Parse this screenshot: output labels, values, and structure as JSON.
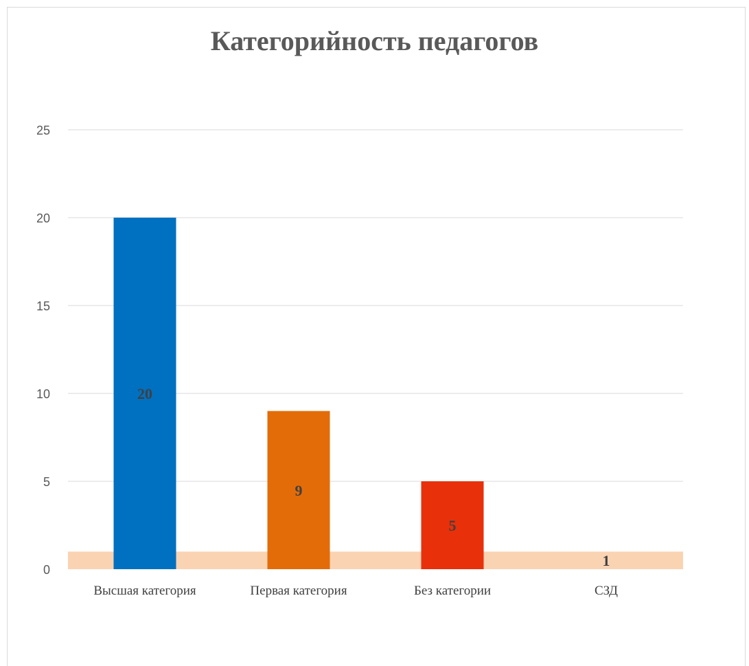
{
  "chart_data": {
    "type": "bar",
    "title": "Категорийность педагогов",
    "xlabel": "",
    "ylabel": "",
    "categories": [
      "Высшая категория",
      "Первая категория",
      "Без категории",
      "СЗД"
    ],
    "values": [
      20,
      9,
      5,
      1
    ],
    "data_labels": [
      "20",
      "9",
      "5",
      "1"
    ],
    "bar_colors": [
      "#0070C0",
      "#E36C09",
      "#E8300A",
      "#FAD3B3"
    ],
    "ylim": [
      0,
      25
    ],
    "yticks": [
      0,
      5,
      10,
      15,
      20,
      25
    ],
    "grid": true,
    "legend": "none",
    "colors": {
      "gridline": "#d9d9d9",
      "axis_text": "#595959",
      "label_text": "#404040"
    }
  }
}
